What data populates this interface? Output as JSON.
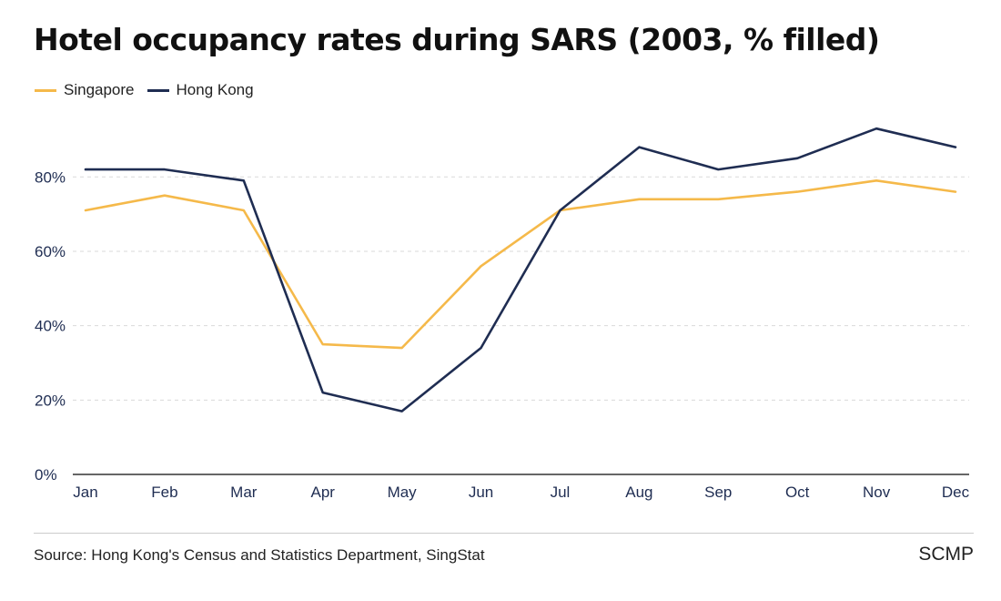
{
  "title": "Hotel occupancy rates during SARS (2003, % filled)",
  "source": "Source: Hong Kong's Census and Statistics Department, SingStat",
  "brand": "SCMP",
  "colors": {
    "singapore": "#f5b94a",
    "hong_kong": "#1f2d52",
    "grid": "#d9d9d9",
    "axis": "#333333"
  },
  "chart_data": {
    "type": "line",
    "title": "Hotel occupancy rates during SARS (2003, % filled)",
    "xlabel": "",
    "ylabel": "",
    "categories": [
      "Jan",
      "Feb",
      "Mar",
      "Apr",
      "May",
      "Jun",
      "Jul",
      "Aug",
      "Sep",
      "Oct",
      "Nov",
      "Dec"
    ],
    "series": [
      {
        "name": "Singapore",
        "color": "#f5b94a",
        "values": [
          71,
          75,
          71,
          35,
          34,
          56,
          71,
          74,
          74,
          76,
          79,
          76
        ]
      },
      {
        "name": "Hong Kong",
        "color": "#1f2d52",
        "values": [
          82,
          82,
          79,
          22,
          17,
          34,
          71,
          88,
          82,
          85,
          93,
          88
        ]
      }
    ],
    "ylim": [
      0,
      95
    ],
    "yticks": [
      0,
      20,
      40,
      60,
      80
    ],
    "ytick_labels": [
      "0%",
      "20%",
      "40%",
      "60%",
      "80%"
    ],
    "grid": true,
    "legend": "top-left"
  }
}
